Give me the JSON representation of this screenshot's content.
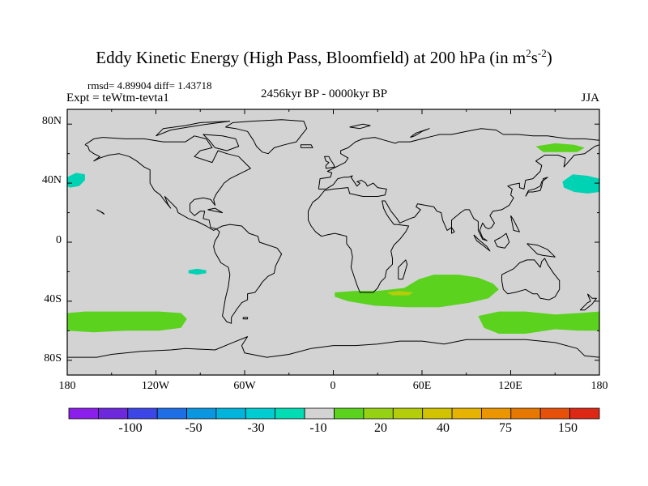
{
  "title": {
    "main": "Eddy Kinetic Energy (High Pass, Bloomfield) at 200 hPa (in m",
    "unit_exp1": "2",
    "unit_mid": "s",
    "unit_exp2": "-2",
    "close": ")"
  },
  "stats": "rmsd= 4.89904 diff= 1.43718",
  "experiment": "Expt = teWtm-tevta1",
  "period": "2456kyr BP - 0000kyr BP",
  "season": "JJA",
  "map": {
    "lat_labels": [
      "80N",
      "40N",
      "0",
      "40S",
      "80S"
    ],
    "lon_labels": [
      "180",
      "120W",
      "60W",
      "0",
      "60E",
      "120E",
      "180"
    ],
    "background_color": "#d3d3d3",
    "coastline_color": "#000000"
  },
  "anomaly_regions": [
    {
      "name": "north-pacific-west-teal",
      "color": "#00d2b4",
      "level": "-10",
      "outline": [
        [
          -180,
          44
        ],
        [
          -174,
          47
        ],
        [
          -168,
          46
        ],
        [
          -168,
          42
        ],
        [
          -172,
          38
        ],
        [
          -178,
          37
        ],
        [
          -180,
          38
        ]
      ]
    },
    {
      "name": "kamchatka-teal",
      "color": "#00d2b4",
      "level": "-10",
      "outline": [
        [
          155,
          41
        ],
        [
          162,
          46
        ],
        [
          172,
          45
        ],
        [
          180,
          43
        ],
        [
          180,
          34
        ],
        [
          172,
          33
        ],
        [
          163,
          34
        ],
        [
          156,
          37
        ]
      ]
    },
    {
      "name": "east-siberia-green",
      "color": "#5ad21e",
      "level": "20",
      "outline": [
        [
          137,
          65
        ],
        [
          150,
          67
        ],
        [
          163,
          66
        ],
        [
          170,
          64
        ],
        [
          165,
          61
        ],
        [
          152,
          61
        ],
        [
          142,
          61
        ]
      ]
    },
    {
      "name": "south-pacific-teal-patch",
      "color": "#00d2b4",
      "level": "-10",
      "outline": [
        [
          -98,
          -19
        ],
        [
          -92,
          -18
        ],
        [
          -86,
          -19
        ],
        [
          -86,
          -21
        ],
        [
          -92,
          -22
        ],
        [
          -98,
          -21
        ]
      ]
    },
    {
      "name": "south-pacific-green-band",
      "color": "#5ad21e",
      "level": "20",
      "outline": [
        [
          -180,
          -48
        ],
        [
          -168,
          -47
        ],
        [
          -146,
          -47
        ],
        [
          -118,
          -47
        ],
        [
          -103,
          -48
        ],
        [
          -99,
          -52
        ],
        [
          -103,
          -58
        ],
        [
          -118,
          -60
        ],
        [
          -140,
          -60
        ],
        [
          -162,
          -61
        ],
        [
          -180,
          -60
        ]
      ]
    },
    {
      "name": "south-atlantic-indian-green-band",
      "color": "#5ad21e",
      "level": "20",
      "outline": [
        [
          1,
          -34
        ],
        [
          15,
          -33
        ],
        [
          30,
          -33
        ],
        [
          48,
          -31
        ],
        [
          58,
          -25
        ],
        [
          68,
          -22
        ],
        [
          85,
          -22
        ],
        [
          98,
          -24
        ],
        [
          108,
          -28
        ],
        [
          112,
          -32
        ],
        [
          105,
          -38
        ],
        [
          92,
          -41
        ],
        [
          72,
          -44
        ],
        [
          50,
          -44
        ],
        [
          28,
          -43
        ],
        [
          10,
          -40
        ],
        [
          1,
          -37
        ]
      ]
    },
    {
      "name": "south-indian-yellow-patch",
      "color": "#b4cd0a",
      "level": "30",
      "outline": [
        [
          36,
          -34
        ],
        [
          45,
          -33
        ],
        [
          54,
          -34
        ],
        [
          51,
          -36
        ],
        [
          40,
          -36
        ]
      ]
    },
    {
      "name": "southern-ocean-green-band",
      "color": "#5ad21e",
      "level": "20",
      "outline": [
        [
          98,
          -50
        ],
        [
          112,
          -47
        ],
        [
          130,
          -47
        ],
        [
          150,
          -49
        ],
        [
          166,
          -48
        ],
        [
          180,
          -47
        ],
        [
          180,
          -60
        ],
        [
          166,
          -60
        ],
        [
          150,
          -59
        ],
        [
          130,
          -62
        ],
        [
          112,
          -62
        ],
        [
          102,
          -58
        ]
      ]
    }
  ],
  "colorbar": {
    "colors": [
      "#8c1eeb",
      "#6e28dc",
      "#3c46e6",
      "#1e6ee6",
      "#0a96e1",
      "#00b4dc",
      "#00cdd2",
      "#00dcb4",
      "#d3d3d3",
      "#5ad21e",
      "#96d214",
      "#b4cd0a",
      "#d2c300",
      "#e6b400",
      "#eb9600",
      "#e67800",
      "#e6500a",
      "#dc2814"
    ],
    "labels": [
      "-100",
      "-50",
      "-30",
      "-10",
      "20",
      "40",
      "75",
      "150"
    ]
  }
}
